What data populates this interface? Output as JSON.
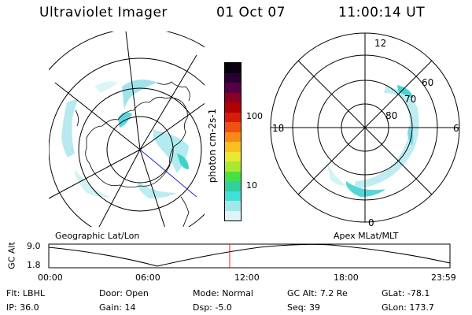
{
  "header": {
    "title": "Ultraviolet Imager",
    "date": "01 Oct 07",
    "time": "11:00:14 UT"
  },
  "colorbar": {
    "unit_label": "photon cm-2s-1",
    "ticks": [
      "100",
      "10"
    ],
    "colors": [
      "#0a0010",
      "#2a0033",
      "#550044",
      "#880022",
      "#b00000",
      "#d81c0c",
      "#f05010",
      "#f88a18",
      "#f8c020",
      "#e8e830",
      "#a8e830",
      "#48e040",
      "#30d0a0",
      "#40e0d8",
      "#9fe8ec",
      "#dff4f6"
    ]
  },
  "left_map": {
    "caption": "Geographic Lat/Lon"
  },
  "right_map": {
    "caption": "Apex MLat/MLT",
    "mlt_labels": [
      "12",
      "18",
      "6",
      "0"
    ],
    "mlat_labels": [
      "60",
      "70",
      "80"
    ]
  },
  "altitude_plot": {
    "ylabel": "GC Alt",
    "y_ticks": [
      "9.0",
      "1.8"
    ],
    "x_ticks": [
      "00:00",
      "06:00",
      "12:00",
      "18:00",
      "23:59"
    ],
    "current_marker_time": "11:00"
  },
  "info": {
    "row1": [
      {
        "label": "Flt:",
        "value": "LBHL"
      },
      {
        "label": "Door:",
        "value": "Open"
      },
      {
        "label": "Mode:",
        "value": "Normal"
      },
      {
        "label": "GC Alt:",
        "value": "7.2 Re"
      },
      {
        "label": "GLat:",
        "value": "-78.1"
      }
    ],
    "row2": [
      {
        "label": "IP:",
        "value": "36.0"
      },
      {
        "label": "Gain:",
        "value": "14"
      },
      {
        "label": "Dsp:",
        "value": "-5.0"
      },
      {
        "label": "Seq:",
        "value": "39"
      },
      {
        "label": "GLon:",
        "value": "173.7"
      }
    ]
  }
}
